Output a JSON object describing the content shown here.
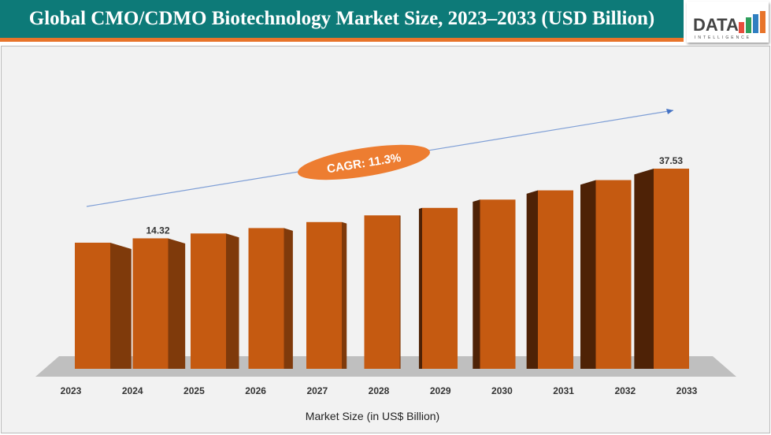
{
  "title": "Global CMO/CDMO Biotechnology Market Size, 2023–2033 (USD Billion)",
  "logo": {
    "text": "DATA",
    "subtext": "INTELLIGENCE"
  },
  "chart_data": {
    "type": "bar",
    "categories": [
      "2023",
      "2024",
      "2025",
      "2026",
      "2027",
      "2028",
      "2029",
      "2030",
      "2031",
      "2032",
      "2033"
    ],
    "values": [
      12.87,
      14.32,
      15.94,
      17.74,
      19.74,
      21.97,
      24.46,
      27.22,
      30.3,
      33.72,
      37.53
    ],
    "data_labels": {
      "2024": "14.32",
      "2033": "37.53"
    },
    "xlabel": "Market Size (in US$ Billion)",
    "annotation": "CAGR: 11.3%",
    "colors": {
      "bar": "#c55a11",
      "bar_side_light": "#7f3a0b",
      "bar_side_dark": "#4e2206",
      "floor": "#bfbfbf",
      "trend": "#7f9fd6",
      "cagr_bubble": "#ed7d31"
    }
  }
}
